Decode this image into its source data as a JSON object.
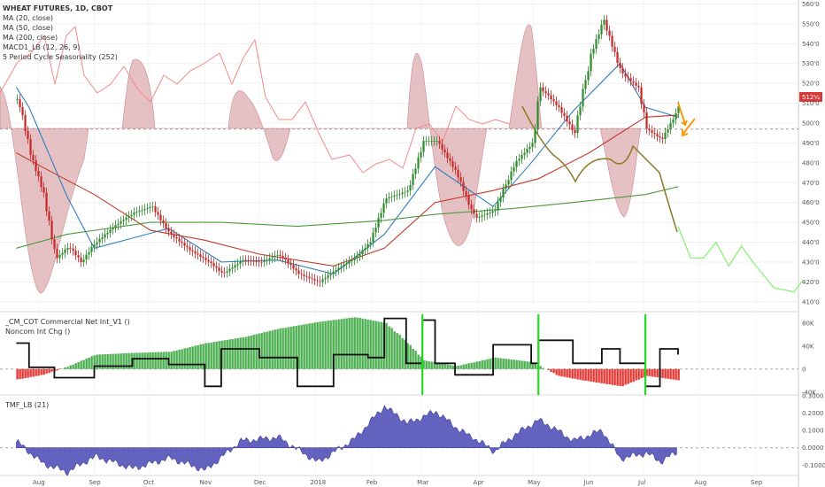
{
  "header": {
    "title": "WHEAT FUTURES, 1D, CBOT",
    "indicators": [
      "MA (20, close)",
      "MA (50, close)",
      "MA (200, close)",
      "MACD1_LB (12, 26, 9)",
      "5 Period Cycle Seasonality (252)"
    ]
  },
  "cot_panel": {
    "indicators": [
      "_CM_COT Commercial Net Int_V1 ()",
      "Noncom Int Chg ()"
    ]
  },
  "tmf_panel": {
    "indicators": [
      "TMF_LB (21)"
    ]
  },
  "time_axis": {
    "labels": [
      "Aug",
      "Sep",
      "Oct",
      "Nov",
      "Dec",
      "2018",
      "Feb",
      "Mar",
      "Apr",
      "May",
      "Jun",
      "Jul",
      "Aug",
      "Sep"
    ]
  },
  "price_badge": "512¼",
  "colors": {
    "up_candle": "#2e8b2e",
    "down_candle": "#c62828",
    "ma20": "#2f7fbf",
    "ma50": "#c0392b",
    "ma200": "#4a9a3a",
    "seasonality_fill": "#d9a0a4",
    "macd_line": "#f28a8a",
    "projection": "#8cf07a",
    "forecast_line": "#8a7a25",
    "arrow": "#f39c12",
    "tmf_fill": "#5252b8",
    "cot_bar_up": "#4caf50",
    "cot_bar_down": "#e53935",
    "cot_line": "#111111",
    "cot_marker": "#22dd22"
  },
  "chart_data": [
    {
      "type": "candlestick",
      "title": "WHEAT FUTURES, 1D, CBOT",
      "y_ticks": [
        "560'0",
        "550'0",
        "540'0",
        "530'0",
        "520'0",
        "510'0",
        "500'0",
        "490'0",
        "480'0",
        "470'0",
        "460'0",
        "450'0",
        "440'0",
        "430'0",
        "420'0",
        "410'0"
      ],
      "ylim": [
        405,
        562
      ],
      "reference_level": 497,
      "last_price": 512.25,
      "close_path": [
        [
          "2017-07-20",
          512
        ],
        [
          "2017-07-27",
          484
        ],
        [
          "2017-08-03",
          465
        ],
        [
          "2017-08-10",
          432
        ],
        [
          "2017-08-17",
          438
        ],
        [
          "2017-08-24",
          430
        ],
        [
          "2017-09-01",
          440
        ],
        [
          "2017-09-11",
          448
        ],
        [
          "2017-09-22",
          455
        ],
        [
          "2017-10-02",
          458
        ],
        [
          "2017-10-12",
          444
        ],
        [
          "2017-10-23",
          436
        ],
        [
          "2017-11-01",
          431
        ],
        [
          "2017-11-10",
          424
        ],
        [
          "2017-11-21",
          431
        ],
        [
          "2017-12-01",
          430
        ],
        [
          "2017-12-11",
          434
        ],
        [
          "2017-12-22",
          424
        ],
        [
          "2018-01-02",
          420
        ],
        [
          "2018-01-11",
          426
        ],
        [
          "2018-01-22",
          432
        ],
        [
          "2018-01-30",
          440
        ],
        [
          "2018-02-08",
          462
        ],
        [
          "2018-02-20",
          466
        ],
        [
          "2018-03-01",
          491
        ],
        [
          "2018-03-08",
          491
        ],
        [
          "2018-03-19",
          475
        ],
        [
          "2018-03-29",
          452
        ],
        [
          "2018-04-09",
          456
        ],
        [
          "2018-04-20",
          480
        ],
        [
          "2018-04-30",
          490
        ],
        [
          "2018-05-04",
          518
        ],
        [
          "2018-05-14",
          508
        ],
        [
          "2018-05-23",
          495
        ],
        [
          "2018-06-01",
          535
        ],
        [
          "2018-06-08",
          552
        ],
        [
          "2018-06-18",
          525
        ],
        [
          "2018-06-27",
          518
        ],
        [
          "2018-07-02",
          497
        ],
        [
          "2018-07-10",
          492
        ],
        [
          "2018-07-18",
          505
        ],
        [
          "2018-07-20",
          512
        ]
      ],
      "series": [
        {
          "name": "MA (20, close)",
          "points": [
            [
              "2017-07-20",
              518
            ],
            [
              "2017-07-27",
              508
            ],
            [
              "2017-08-17",
              463
            ],
            [
              "2017-09-01",
              437
            ],
            [
              "2017-09-22",
              442
            ],
            [
              "2017-10-12",
              447
            ],
            [
              "2017-11-10",
              430
            ],
            [
              "2017-12-11",
              431
            ],
            [
              "2018-01-11",
              424
            ],
            [
              "2018-02-08",
              444
            ],
            [
              "2018-03-08",
              478
            ],
            [
              "2018-04-09",
              458
            ],
            [
              "2018-04-30",
              480
            ],
            [
              "2018-05-23",
              506
            ],
            [
              "2018-06-18",
              530
            ],
            [
              "2018-07-02",
              508
            ],
            [
              "2018-07-20",
              503
            ]
          ]
        },
        {
          "name": "MA (50, close)",
          "points": [
            [
              "2017-07-20",
              485
            ],
            [
              "2017-08-03",
              478
            ],
            [
              "2017-09-01",
              464
            ],
            [
              "2017-10-02",
              446
            ],
            [
              "2017-11-01",
              441
            ],
            [
              "2017-12-01",
              434
            ],
            [
              "2018-01-11",
              428
            ],
            [
              "2018-02-08",
              437
            ],
            [
              "2018-03-08",
              460
            ],
            [
              "2018-04-09",
              466
            ],
            [
              "2018-05-04",
              472
            ],
            [
              "2018-06-01",
              485
            ],
            [
              "2018-07-02",
              503
            ],
            [
              "2018-07-20",
              504
            ]
          ]
        },
        {
          "name": "MA (200, close)",
          "points": [
            [
              "2017-07-20",
              437
            ],
            [
              "2017-08-17",
              444
            ],
            [
              "2017-10-02",
              450
            ],
            [
              "2017-11-10",
              450
            ],
            [
              "2017-12-22",
              448
            ],
            [
              "2018-02-08",
              451
            ],
            [
              "2018-03-08",
              454
            ],
            [
              "2018-04-20",
              457
            ],
            [
              "2018-05-23",
              460
            ],
            [
              "2018-07-02",
              464
            ],
            [
              "2018-07-20",
              468
            ]
          ]
        },
        {
          "name": "Seasonality projection",
          "points": [
            [
              "2018-07-20",
              448
            ],
            [
              "2018-07-27",
              432
            ],
            [
              "2018-08-03",
              432
            ],
            [
              "2018-08-10",
              440
            ],
            [
              "2018-08-17",
              428
            ],
            [
              "2018-08-24",
              438
            ],
            [
              "2018-09-01",
              428
            ],
            [
              "2018-09-11",
              417
            ],
            [
              "2018-09-22",
              415
            ],
            [
              "2018-09-27",
              421
            ]
          ]
        }
      ]
    },
    {
      "type": "bar",
      "title": "_CM_COT Commercial Net Int_V1 ()",
      "y_ticks": [
        "80K",
        "40K",
        "0",
        "-40K"
      ],
      "ylim": [
        -45000,
        95000
      ],
      "bars": [
        [
          "2017-07-20",
          -18000
        ],
        [
          "2017-08-03",
          -10000
        ],
        [
          "2017-08-17",
          5000
        ],
        [
          "2017-09-01",
          25000
        ],
        [
          "2017-09-22",
          28000
        ],
        [
          "2017-10-12",
          30000
        ],
        [
          "2017-11-01",
          45000
        ],
        [
          "2017-11-21",
          55000
        ],
        [
          "2017-12-11",
          70000
        ],
        [
          "2018-01-02",
          82000
        ],
        [
          "2018-01-22",
          90000
        ],
        [
          "2018-02-08",
          80000
        ],
        [
          "2018-02-20",
          45000
        ],
        [
          "2018-03-01",
          15000
        ],
        [
          "2018-03-19",
          5000
        ],
        [
          "2018-04-09",
          20000
        ],
        [
          "2018-04-30",
          12000
        ],
        [
          "2018-05-14",
          -12000
        ],
        [
          "2018-06-01",
          -22000
        ],
        [
          "2018-06-18",
          -30000
        ],
        [
          "2018-07-02",
          -12000
        ],
        [
          "2018-07-20",
          -20000
        ]
      ],
      "series": [
        {
          "name": "Noncom Int Chg ()",
          "points": [
            [
              "2017-07-20",
              45000
            ],
            [
              "2017-07-27",
              3000
            ],
            [
              "2017-08-10",
              -15000
            ],
            [
              "2017-09-01",
              5000
            ],
            [
              "2017-09-22",
              18000
            ],
            [
              "2017-10-12",
              8000
            ],
            [
              "2017-11-01",
              -30000
            ],
            [
              "2017-11-10",
              35000
            ],
            [
              "2017-12-01",
              20000
            ],
            [
              "2017-12-22",
              -30000
            ],
            [
              "2018-01-11",
              25000
            ],
            [
              "2018-01-30",
              20000
            ],
            [
              "2018-02-08",
              88000
            ],
            [
              "2018-02-20",
              10000
            ],
            [
              "2018-03-01",
              85000
            ],
            [
              "2018-03-08",
              10000
            ],
            [
              "2018-03-19",
              -10000
            ],
            [
              "2018-04-09",
              42000
            ],
            [
              "2018-04-30",
              10000
            ],
            [
              "2018-05-04",
              50000
            ],
            [
              "2018-05-23",
              10000
            ],
            [
              "2018-06-08",
              35000
            ],
            [
              "2018-06-18",
              10000
            ],
            [
              "2018-07-02",
              -30000
            ],
            [
              "2018-07-10",
              35000
            ],
            [
              "2018-07-20",
              25000
            ]
          ]
        }
      ],
      "markers": [
        "2018-03-01",
        "2018-05-04",
        "2018-07-02"
      ]
    },
    {
      "type": "area",
      "title": "TMF_LB (21)",
      "y_ticks": [
        "0.3000",
        "0.2000",
        "0.1000",
        "0.0000",
        "-0.1000"
      ],
      "ylim": [
        -0.16,
        0.3
      ],
      "series": [
        {
          "name": "TMF_LB (21)",
          "points": [
            [
              "2017-07-20",
              0.03
            ],
            [
              "2017-08-03",
              -0.09
            ],
            [
              "2017-08-17",
              -0.14
            ],
            [
              "2017-09-01",
              -0.05
            ],
            [
              "2017-09-22",
              -0.12
            ],
            [
              "2017-10-12",
              -0.06
            ],
            [
              "2017-11-01",
              -0.13
            ],
            [
              "2017-11-21",
              0.04
            ],
            [
              "2017-12-11",
              0.06
            ],
            [
              "2018-01-02",
              -0.08
            ],
            [
              "2018-01-22",
              0.05
            ],
            [
              "2018-02-08",
              0.24
            ],
            [
              "2018-02-20",
              0.14
            ],
            [
              "2018-03-08",
              0.21
            ],
            [
              "2018-03-19",
              0.12
            ],
            [
              "2018-04-09",
              -0.02
            ],
            [
              "2018-04-20",
              0.07
            ],
            [
              "2018-05-04",
              0.16
            ],
            [
              "2018-05-23",
              0.04
            ],
            [
              "2018-06-08",
              0.1
            ],
            [
              "2018-06-18",
              -0.06
            ],
            [
              "2018-07-02",
              -0.03
            ],
            [
              "2018-07-10",
              -0.08
            ],
            [
              "2018-07-20",
              -0.02
            ]
          ]
        }
      ]
    }
  ]
}
